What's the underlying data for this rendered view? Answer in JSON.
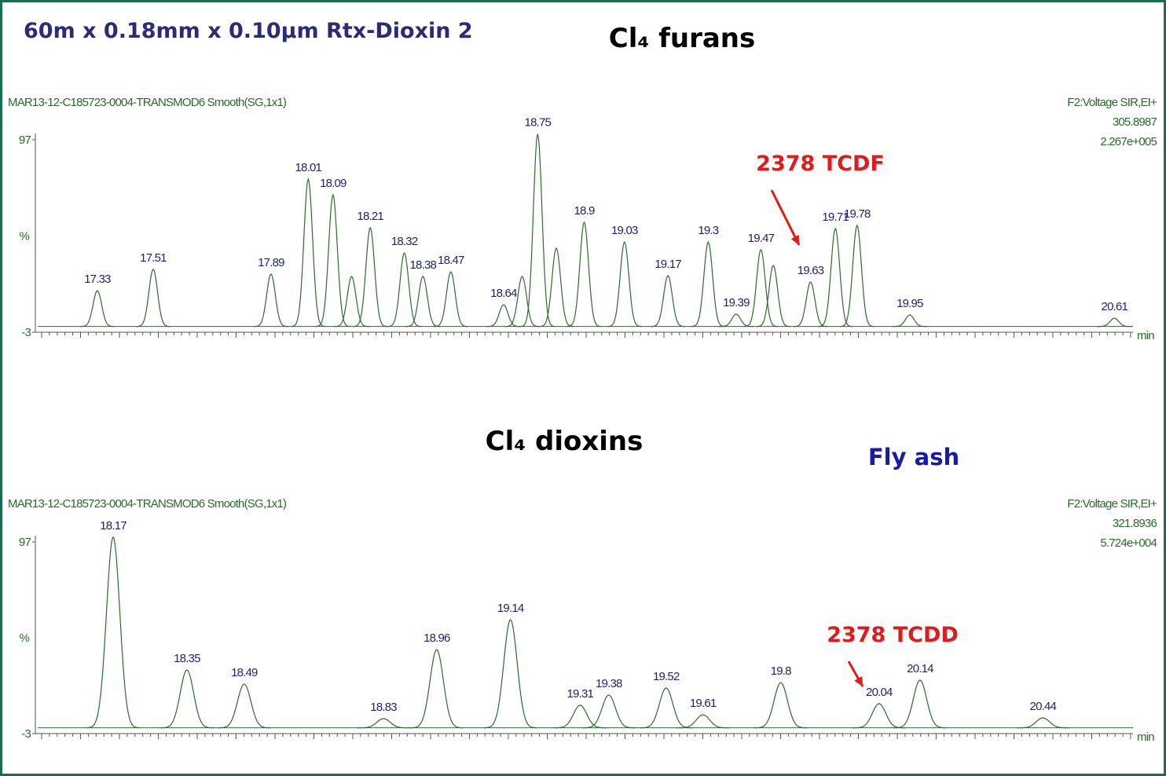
{
  "column": "60m x 0.18mm x 0.10µm Rtx-Dioxin 2",
  "sample": "Fly ash",
  "chart_data": [
    {
      "type": "chromatogram",
      "title": "Cl₄ furans",
      "header_left": "MAR13-12-C185723-0004-TRANSMOD6 Smooth(SG,1x1)",
      "header_right": [
        "F2:Voltage SIR,EI+",
        "305.8987",
        "2.267e+005"
      ],
      "y_label": "%",
      "x_label": "min",
      "annotation": "2378 TCDF",
      "color": "#2e6b2e",
      "xlim": [
        17.13,
        20.67
      ],
      "ylim": [
        -3,
        97
      ],
      "yticks": [
        -3,
        97
      ],
      "x": [
        17.33,
        17.51,
        17.89,
        18.01,
        18.09,
        18.21,
        18.32,
        18.38,
        18.47,
        18.64,
        18.75,
        18.9,
        19.03,
        19.17,
        19.3,
        19.39,
        19.47,
        19.63,
        19.71,
        19.78,
        19.95,
        20.61
      ],
      "values": [
        18.6,
        29.7,
        27.2,
        76.6,
        68.4,
        51.3,
        38.2,
        26.0,
        28.4,
        11.3,
        100,
        54.1,
        43.9,
        26.4,
        43.9,
        6.4,
        39.9,
        23.1,
        50.9,
        52.5,
        6.0,
        4.3
      ],
      "unlabeled": {
        "x": [
          18.15,
          18.7,
          18.81,
          19.51
        ],
        "values": [
          26,
          26,
          40.7,
          31.7
        ]
      }
    },
    {
      "type": "chromatogram",
      "title": "Cl₄ dioxins",
      "header_left": "MAR13-12-C185723-0004-TRANSMOD6 Smooth(SG,1x1)",
      "header_right": [
        "F2:Voltage SIR,EI+",
        "321.8936",
        "5.724e+004"
      ],
      "y_label": "%",
      "x_label": "min",
      "annotation": "2378 TCDD",
      "color": "#2e6b2e",
      "xlim": [
        17.98,
        20.66
      ],
      "ylim": [
        -3,
        97
      ],
      "yticks": [
        -3,
        97
      ],
      "x": [
        18.17,
        18.35,
        18.49,
        18.83,
        18.96,
        19.14,
        19.31,
        19.38,
        19.52,
        19.61,
        19.8,
        20.04,
        20.14,
        20.44
      ],
      "values": [
        99.5,
        30.2,
        22.8,
        4.8,
        40.8,
        56.4,
        11.8,
        17.1,
        20.8,
        6.8,
        23.6,
        12.6,
        24.9,
        5.2
      ]
    }
  ]
}
